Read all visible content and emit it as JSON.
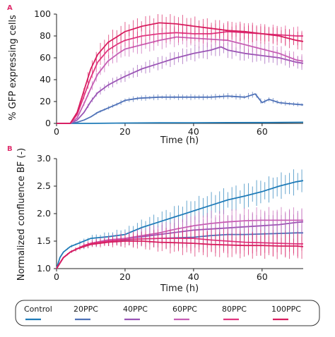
{
  "colors": {
    "Control": "#1f7bb8",
    "20PPC": "#4f72b8",
    "40PPC": "#9a55b5",
    "60PPC": "#c65fb4",
    "80PPC": "#e0357f",
    "100PPC": "#d81c5e"
  },
  "chart_data": [
    {
      "panel": "A",
      "type": "line",
      "xlabel": "Time (h)",
      "ylabel": "% GFP expressing cells",
      "xlim": [
        0,
        72
      ],
      "ylim": [
        0,
        100
      ],
      "xticks": [
        0,
        20,
        40,
        60
      ],
      "yticks": [
        0,
        20,
        40,
        60,
        80,
        100
      ],
      "error_bars": true,
      "series": [
        {
          "name": "Control",
          "x": [
            0,
            10,
            20,
            30,
            40,
            50,
            60,
            72
          ],
          "values": [
            0,
            0,
            0.3,
            0.5,
            0.6,
            0.7,
            0.8,
            1
          ]
        },
        {
          "name": "20PPC",
          "x": [
            0,
            4,
            6,
            8,
            10,
            12,
            15,
            18,
            20,
            24,
            30,
            35,
            40,
            45,
            50,
            55,
            58,
            60,
            62,
            65,
            68,
            72
          ],
          "values": [
            0,
            0,
            1,
            3,
            6,
            10,
            14,
            18,
            21,
            23,
            24,
            24,
            24,
            24,
            25,
            24,
            27,
            19,
            22,
            19,
            18,
            17
          ]
        },
        {
          "name": "40PPC",
          "x": [
            0,
            4,
            6,
            8,
            10,
            12,
            15,
            18,
            20,
            25,
            30,
            35,
            40,
            45,
            48,
            50,
            55,
            60,
            65,
            70,
            72
          ],
          "values": [
            0,
            0,
            3,
            10,
            20,
            28,
            35,
            40,
            43,
            50,
            55,
            60,
            64,
            67,
            70,
            67,
            64,
            62,
            60,
            56,
            55
          ]
        },
        {
          "name": "60PPC",
          "x": [
            0,
            4,
            6,
            8,
            10,
            12,
            15,
            18,
            20,
            25,
            30,
            35,
            40,
            45,
            50,
            55,
            60,
            65,
            70,
            72
          ],
          "values": [
            0,
            0,
            5,
            18,
            32,
            45,
            57,
            64,
            68,
            72,
            76,
            79,
            78,
            77,
            76,
            72,
            68,
            64,
            58,
            57
          ]
        },
        {
          "name": "80PPC",
          "x": [
            0,
            4,
            6,
            8,
            10,
            12,
            15,
            18,
            20,
            25,
            30,
            35,
            40,
            45,
            50,
            55,
            60,
            65,
            70,
            72
          ],
          "values": [
            0,
            0,
            8,
            25,
            42,
            56,
            67,
            73,
            76,
            80,
            82,
            83,
            82,
            82,
            84,
            83,
            82,
            81,
            80,
            80
          ]
        },
        {
          "name": "100PPC",
          "x": [
            0,
            4,
            6,
            8,
            10,
            12,
            15,
            18,
            20,
            25,
            30,
            35,
            40,
            45,
            50,
            55,
            60,
            65,
            70,
            72
          ],
          "values": [
            0,
            0,
            10,
            30,
            50,
            63,
            74,
            80,
            84,
            89,
            92,
            91,
            89,
            87,
            85,
            84,
            82,
            80,
            76,
            75
          ]
        }
      ]
    },
    {
      "panel": "B",
      "type": "line",
      "xlabel": "Time (h)",
      "ylabel": "Normalized confluence BF (-)",
      "xlim": [
        0,
        72
      ],
      "ylim": [
        1.0,
        3.0
      ],
      "xticks": [
        0,
        20,
        40,
        60
      ],
      "yticks": [
        1.0,
        1.5,
        2.0,
        2.5,
        3.0
      ],
      "error_bars": true,
      "series": [
        {
          "name": "Control",
          "x": [
            0,
            1,
            2,
            4,
            6,
            8,
            10,
            15,
            20,
            25,
            30,
            35,
            40,
            45,
            50,
            55,
            60,
            65,
            70,
            72
          ],
          "values": [
            1.0,
            1.2,
            1.3,
            1.4,
            1.45,
            1.5,
            1.55,
            1.58,
            1.62,
            1.75,
            1.85,
            1.95,
            2.05,
            2.15,
            2.25,
            2.32,
            2.4,
            2.5,
            2.58,
            2.6
          ]
        },
        {
          "name": "20PPC",
          "x": [
            0,
            1,
            2,
            4,
            6,
            8,
            10,
            15,
            20,
            25,
            30,
            35,
            40,
            45,
            50,
            55,
            60,
            65,
            70,
            72
          ],
          "values": [
            1.0,
            1.1,
            1.2,
            1.3,
            1.36,
            1.4,
            1.44,
            1.5,
            1.52,
            1.54,
            1.55,
            1.56,
            1.57,
            1.6,
            1.62,
            1.62,
            1.63,
            1.64,
            1.65,
            1.65
          ]
        },
        {
          "name": "40PPC",
          "x": [
            0,
            1,
            2,
            4,
            6,
            8,
            10,
            15,
            20,
            25,
            30,
            35,
            40,
            45,
            50,
            55,
            60,
            65,
            70,
            72
          ],
          "values": [
            1.0,
            1.1,
            1.2,
            1.3,
            1.36,
            1.42,
            1.46,
            1.52,
            1.55,
            1.58,
            1.62,
            1.66,
            1.7,
            1.72,
            1.74,
            1.76,
            1.78,
            1.8,
            1.84,
            1.85
          ]
        },
        {
          "name": "60PPC",
          "x": [
            0,
            1,
            2,
            4,
            6,
            8,
            10,
            15,
            20,
            25,
            30,
            35,
            40,
            45,
            50,
            55,
            60,
            65,
            70,
            72
          ],
          "values": [
            1.0,
            1.1,
            1.2,
            1.3,
            1.36,
            1.42,
            1.46,
            1.52,
            1.55,
            1.6,
            1.65,
            1.72,
            1.78,
            1.82,
            1.85,
            1.87,
            1.88,
            1.88,
            1.88,
            1.88
          ]
        },
        {
          "name": "80PPC",
          "x": [
            0,
            1,
            2,
            4,
            6,
            8,
            10,
            15,
            20,
            25,
            30,
            35,
            40,
            45,
            50,
            55,
            60,
            65,
            70,
            72
          ],
          "values": [
            1.0,
            1.1,
            1.2,
            1.3,
            1.36,
            1.42,
            1.46,
            1.5,
            1.53,
            1.54,
            1.55,
            1.55,
            1.55,
            1.52,
            1.5,
            1.48,
            1.47,
            1.46,
            1.45,
            1.45
          ]
        },
        {
          "name": "100PPC",
          "x": [
            0,
            1,
            2,
            4,
            6,
            8,
            10,
            15,
            20,
            25,
            30,
            35,
            40,
            45,
            50,
            55,
            60,
            65,
            70,
            72
          ],
          "values": [
            1.0,
            1.1,
            1.2,
            1.3,
            1.36,
            1.4,
            1.44,
            1.48,
            1.5,
            1.5,
            1.48,
            1.47,
            1.46,
            1.44,
            1.43,
            1.42,
            1.42,
            1.41,
            1.41,
            1.4
          ]
        }
      ]
    }
  ],
  "legend": {
    "items": [
      "Control",
      "20PPC",
      "40PPC",
      "60PPC",
      "80PPC",
      "100PPC"
    ]
  }
}
